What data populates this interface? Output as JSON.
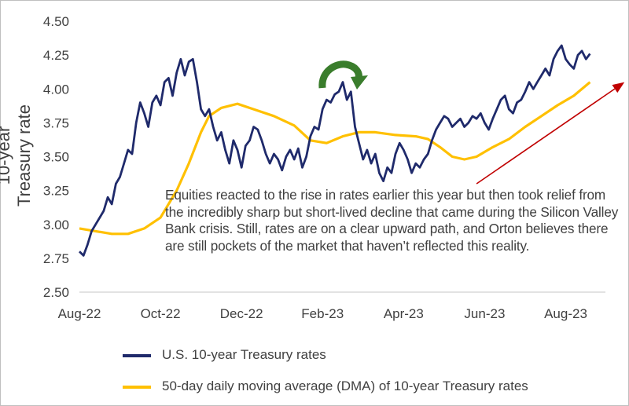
{
  "chart_data": {
    "type": "line",
    "ylabel": "10-year Treasury rate",
    "ylim": [
      2.5,
      4.5
    ],
    "yticks": [
      "2.50",
      "2.75",
      "3.00",
      "3.25",
      "3.50",
      "3.75",
      "4.00",
      "4.25",
      "4.50"
    ],
    "xlabels": [
      "Aug-22",
      "Oct-22",
      "Dec-22",
      "Feb-23",
      "Apr-23",
      "Jun-23",
      "Aug-23"
    ],
    "x_unit": "months since Aug 1, 2022",
    "xtick_positions": [
      0,
      2,
      4,
      6,
      8,
      10,
      12
    ],
    "xlim": [
      0,
      12.65
    ],
    "series": [
      {
        "name": "U.S. 10-year Treasury rates",
        "color": "#1f2a6b",
        "points": [
          [
            0.0,
            2.8
          ],
          [
            0.1,
            2.77
          ],
          [
            0.2,
            2.85
          ],
          [
            0.3,
            2.95
          ],
          [
            0.4,
            3.0
          ],
          [
            0.5,
            3.05
          ],
          [
            0.6,
            3.1
          ],
          [
            0.7,
            3.2
          ],
          [
            0.8,
            3.15
          ],
          [
            0.9,
            3.3
          ],
          [
            1.0,
            3.35
          ],
          [
            1.1,
            3.45
          ],
          [
            1.2,
            3.55
          ],
          [
            1.3,
            3.52
          ],
          [
            1.4,
            3.75
          ],
          [
            1.5,
            3.9
          ],
          [
            1.6,
            3.82
          ],
          [
            1.7,
            3.72
          ],
          [
            1.8,
            3.9
          ],
          [
            1.9,
            3.95
          ],
          [
            2.0,
            3.88
          ],
          [
            2.1,
            4.05
          ],
          [
            2.2,
            4.08
          ],
          [
            2.3,
            3.95
          ],
          [
            2.4,
            4.12
          ],
          [
            2.5,
            4.22
          ],
          [
            2.6,
            4.1
          ],
          [
            2.7,
            4.2
          ],
          [
            2.8,
            4.22
          ],
          [
            2.9,
            4.05
          ],
          [
            3.0,
            3.85
          ],
          [
            3.1,
            3.8
          ],
          [
            3.2,
            3.85
          ],
          [
            3.3,
            3.72
          ],
          [
            3.4,
            3.62
          ],
          [
            3.5,
            3.68
          ],
          [
            3.6,
            3.55
          ],
          [
            3.7,
            3.45
          ],
          [
            3.8,
            3.62
          ],
          [
            3.9,
            3.55
          ],
          [
            4.0,
            3.42
          ],
          [
            4.1,
            3.58
          ],
          [
            4.2,
            3.62
          ],
          [
            4.3,
            3.72
          ],
          [
            4.4,
            3.7
          ],
          [
            4.5,
            3.62
          ],
          [
            4.6,
            3.52
          ],
          [
            4.7,
            3.45
          ],
          [
            4.8,
            3.52
          ],
          [
            4.9,
            3.48
          ],
          [
            5.0,
            3.4
          ],
          [
            5.1,
            3.5
          ],
          [
            5.2,
            3.55
          ],
          [
            5.3,
            3.48
          ],
          [
            5.4,
            3.56
          ],
          [
            5.5,
            3.42
          ],
          [
            5.6,
            3.5
          ],
          [
            5.7,
            3.65
          ],
          [
            5.8,
            3.72
          ],
          [
            5.9,
            3.7
          ],
          [
            6.0,
            3.85
          ],
          [
            6.1,
            3.92
          ],
          [
            6.2,
            3.9
          ],
          [
            6.3,
            3.96
          ],
          [
            6.4,
            3.98
          ],
          [
            6.5,
            4.05
          ],
          [
            6.6,
            3.92
          ],
          [
            6.7,
            3.98
          ],
          [
            6.8,
            3.72
          ],
          [
            6.9,
            3.6
          ],
          [
            7.0,
            3.48
          ],
          [
            7.1,
            3.55
          ],
          [
            7.2,
            3.45
          ],
          [
            7.3,
            3.52
          ],
          [
            7.4,
            3.38
          ],
          [
            7.5,
            3.32
          ],
          [
            7.6,
            3.42
          ],
          [
            7.7,
            3.38
          ],
          [
            7.8,
            3.52
          ],
          [
            7.9,
            3.6
          ],
          [
            8.0,
            3.55
          ],
          [
            8.1,
            3.48
          ],
          [
            8.2,
            3.38
          ],
          [
            8.3,
            3.45
          ],
          [
            8.4,
            3.42
          ],
          [
            8.5,
            3.48
          ],
          [
            8.6,
            3.52
          ],
          [
            8.7,
            3.62
          ],
          [
            8.8,
            3.7
          ],
          [
            8.9,
            3.75
          ],
          [
            9.0,
            3.8
          ],
          [
            9.1,
            3.78
          ],
          [
            9.2,
            3.72
          ],
          [
            9.3,
            3.75
          ],
          [
            9.4,
            3.78
          ],
          [
            9.5,
            3.72
          ],
          [
            9.6,
            3.75
          ],
          [
            9.7,
            3.8
          ],
          [
            9.8,
            3.78
          ],
          [
            9.9,
            3.82
          ],
          [
            10.0,
            3.75
          ],
          [
            10.1,
            3.7
          ],
          [
            10.2,
            3.78
          ],
          [
            10.3,
            3.85
          ],
          [
            10.4,
            3.92
          ],
          [
            10.5,
            3.95
          ],
          [
            10.6,
            3.85
          ],
          [
            10.7,
            3.82
          ],
          [
            10.8,
            3.9
          ],
          [
            10.9,
            3.92
          ],
          [
            11.0,
            3.98
          ],
          [
            11.1,
            4.05
          ],
          [
            11.2,
            4.0
          ],
          [
            11.3,
            4.05
          ],
          [
            11.4,
            4.1
          ],
          [
            11.5,
            4.15
          ],
          [
            11.6,
            4.1
          ],
          [
            11.7,
            4.22
          ],
          [
            11.8,
            4.28
          ],
          [
            11.9,
            4.32
          ],
          [
            12.0,
            4.22
          ],
          [
            12.1,
            4.18
          ],
          [
            12.2,
            4.15
          ],
          [
            12.3,
            4.25
          ],
          [
            12.4,
            4.28
          ],
          [
            12.5,
            4.22
          ],
          [
            12.6,
            4.26
          ]
        ]
      },
      {
        "name": "50-day daily moving average (DMA) of 10-year Treasury rates",
        "color": "#ffc000",
        "points": [
          [
            0.0,
            2.97
          ],
          [
            0.4,
            2.95
          ],
          [
            0.8,
            2.93
          ],
          [
            1.2,
            2.93
          ],
          [
            1.6,
            2.97
          ],
          [
            2.0,
            3.05
          ],
          [
            2.4,
            3.25
          ],
          [
            2.7,
            3.45
          ],
          [
            3.0,
            3.68
          ],
          [
            3.2,
            3.8
          ],
          [
            3.5,
            3.86
          ],
          [
            3.9,
            3.89
          ],
          [
            4.3,
            3.85
          ],
          [
            4.8,
            3.8
          ],
          [
            5.3,
            3.73
          ],
          [
            5.7,
            3.62
          ],
          [
            6.1,
            3.6
          ],
          [
            6.5,
            3.65
          ],
          [
            6.9,
            3.68
          ],
          [
            7.3,
            3.68
          ],
          [
            7.8,
            3.66
          ],
          [
            8.3,
            3.65
          ],
          [
            8.6,
            3.63
          ],
          [
            8.9,
            3.57
          ],
          [
            9.2,
            3.5
          ],
          [
            9.5,
            3.48
          ],
          [
            9.8,
            3.5
          ],
          [
            10.2,
            3.57
          ],
          [
            10.6,
            3.63
          ],
          [
            11.0,
            3.72
          ],
          [
            11.4,
            3.8
          ],
          [
            11.8,
            3.88
          ],
          [
            12.2,
            3.95
          ],
          [
            12.6,
            4.05
          ]
        ]
      }
    ],
    "annotation": "Equities reacted to the rise in rates earlier this year but then took relief from the incredibly sharp but short-lived decline that came during the Silicon Valley Bank crisis. Still, rates are on a clear upward path, and Orton believes there are still pockets of the market that haven’t reflected this reality.",
    "trend_arrow": {
      "from": [
        9.8,
        3.3
      ],
      "to": [
        13.45,
        4.05
      ],
      "color": "#c00000"
    },
    "curved_arrow": {
      "color": "#3a7d2c"
    }
  }
}
